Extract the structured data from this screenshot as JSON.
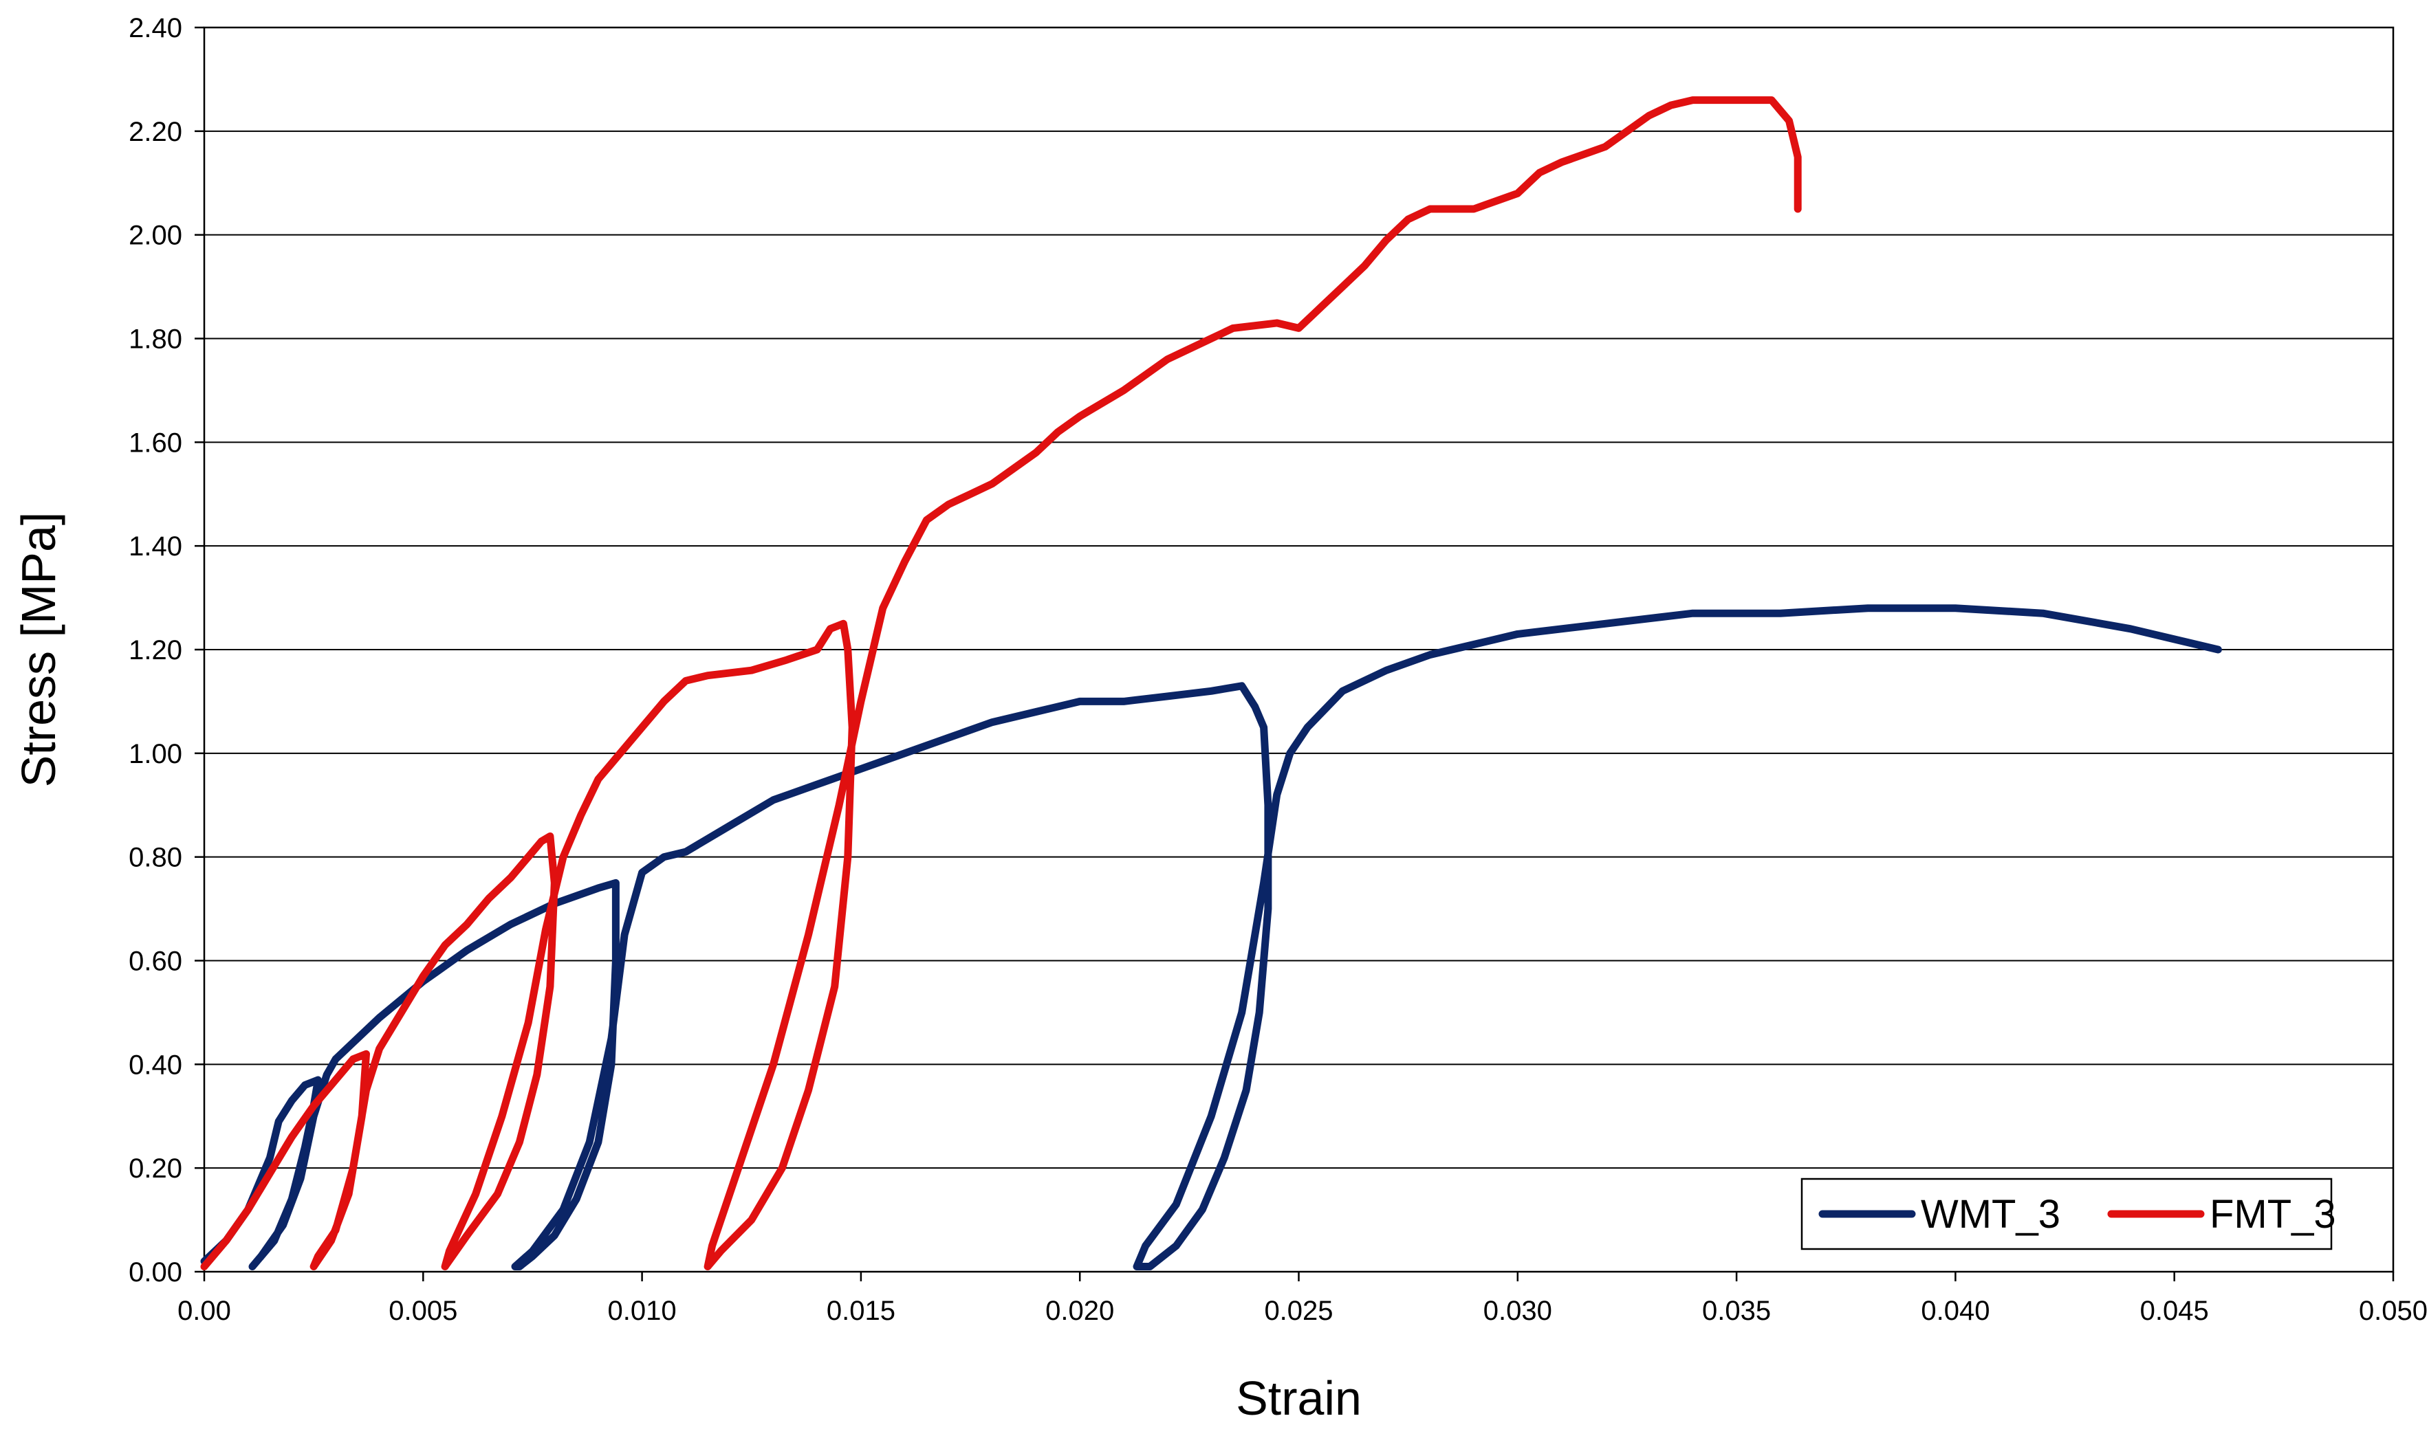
{
  "chart_data": {
    "type": "line",
    "xlabel": "Strain",
    "ylabel": "Stress [MPa]",
    "xlim": [
      0.0,
      0.05
    ],
    "ylim": [
      0.0,
      2.4
    ],
    "x_ticks": [
      "0.00",
      "0.005",
      "0.010",
      "0.015",
      "0.020",
      "0.025",
      "0.030",
      "0.035",
      "0.040",
      "0.045",
      "0.050"
    ],
    "y_ticks": [
      "0.00",
      "0.20",
      "0.40",
      "0.60",
      "0.80",
      "1.00",
      "1.20",
      "1.40",
      "1.60",
      "1.80",
      "2.00",
      "2.20",
      "2.40"
    ],
    "grid": "horizontal",
    "legend_position": "bottom-right",
    "series": [
      {
        "name": "WMT_3",
        "color": "#0b2566",
        "points": [
          [
            0.0,
            0.02
          ],
          [
            0.0005,
            0.06
          ],
          [
            0.001,
            0.12
          ],
          [
            0.0015,
            0.22
          ],
          [
            0.0017,
            0.29
          ],
          [
            0.002,
            0.33
          ],
          [
            0.0023,
            0.36
          ],
          [
            0.0026,
            0.37
          ],
          [
            0.0025,
            0.32
          ],
          [
            0.0023,
            0.24
          ],
          [
            0.002,
            0.14
          ],
          [
            0.0016,
            0.06
          ],
          [
            0.0012,
            0.02
          ],
          [
            0.0011,
            0.01
          ],
          [
            0.0013,
            0.03
          ],
          [
            0.0018,
            0.09
          ],
          [
            0.0022,
            0.18
          ],
          [
            0.0025,
            0.3
          ],
          [
            0.0028,
            0.38
          ],
          [
            0.003,
            0.41
          ],
          [
            0.0035,
            0.45
          ],
          [
            0.004,
            0.49
          ],
          [
            0.005,
            0.56
          ],
          [
            0.006,
            0.62
          ],
          [
            0.007,
            0.67
          ],
          [
            0.008,
            0.71
          ],
          [
            0.009,
            0.74
          ],
          [
            0.0094,
            0.75
          ],
          [
            0.0094,
            0.6
          ],
          [
            0.0093,
            0.4
          ],
          [
            0.009,
            0.25
          ],
          [
            0.0085,
            0.14
          ],
          [
            0.008,
            0.07
          ],
          [
            0.0075,
            0.03
          ],
          [
            0.0072,
            0.01
          ],
          [
            0.0071,
            0.01
          ],
          [
            0.0075,
            0.04
          ],
          [
            0.0082,
            0.12
          ],
          [
            0.0088,
            0.25
          ],
          [
            0.0093,
            0.45
          ],
          [
            0.0096,
            0.65
          ],
          [
            0.01,
            0.77
          ],
          [
            0.0105,
            0.8
          ],
          [
            0.011,
            0.81
          ],
          [
            0.012,
            0.86
          ],
          [
            0.013,
            0.91
          ],
          [
            0.014,
            0.94
          ],
          [
            0.015,
            0.97
          ],
          [
            0.016,
            1.0
          ],
          [
            0.017,
            1.03
          ],
          [
            0.018,
            1.06
          ],
          [
            0.019,
            1.08
          ],
          [
            0.02,
            1.1
          ],
          [
            0.021,
            1.1
          ],
          [
            0.022,
            1.11
          ],
          [
            0.023,
            1.12
          ],
          [
            0.0237,
            1.13
          ],
          [
            0.024,
            1.09
          ],
          [
            0.0242,
            1.05
          ],
          [
            0.0243,
            0.9
          ],
          [
            0.0243,
            0.7
          ],
          [
            0.0241,
            0.5
          ],
          [
            0.0238,
            0.35
          ],
          [
            0.0233,
            0.22
          ],
          [
            0.0228,
            0.12
          ],
          [
            0.0222,
            0.05
          ],
          [
            0.0216,
            0.01
          ],
          [
            0.0213,
            0.01
          ],
          [
            0.0215,
            0.05
          ],
          [
            0.0222,
            0.13
          ],
          [
            0.023,
            0.3
          ],
          [
            0.0237,
            0.5
          ],
          [
            0.0242,
            0.75
          ],
          [
            0.0245,
            0.92
          ],
          [
            0.0248,
            1.0
          ],
          [
            0.0252,
            1.05
          ],
          [
            0.026,
            1.12
          ],
          [
            0.027,
            1.16
          ],
          [
            0.028,
            1.19
          ],
          [
            0.029,
            1.21
          ],
          [
            0.03,
            1.23
          ],
          [
            0.032,
            1.25
          ],
          [
            0.034,
            1.27
          ],
          [
            0.036,
            1.27
          ],
          [
            0.038,
            1.28
          ],
          [
            0.04,
            1.28
          ],
          [
            0.042,
            1.27
          ],
          [
            0.044,
            1.24
          ],
          [
            0.046,
            1.2
          ]
        ]
      },
      {
        "name": "FMT_3",
        "color": "#e01010",
        "points": [
          [
            0.0,
            0.01
          ],
          [
            0.0005,
            0.06
          ],
          [
            0.001,
            0.12
          ],
          [
            0.0015,
            0.19
          ],
          [
            0.002,
            0.26
          ],
          [
            0.0025,
            0.32
          ],
          [
            0.003,
            0.37
          ],
          [
            0.0034,
            0.41
          ],
          [
            0.0037,
            0.42
          ],
          [
            0.0036,
            0.3
          ],
          [
            0.0033,
            0.15
          ],
          [
            0.0029,
            0.06
          ],
          [
            0.0025,
            0.01
          ],
          [
            0.0026,
            0.03
          ],
          [
            0.003,
            0.08
          ],
          [
            0.0034,
            0.2
          ],
          [
            0.0037,
            0.35
          ],
          [
            0.004,
            0.43
          ],
          [
            0.0045,
            0.5
          ],
          [
            0.005,
            0.57
          ],
          [
            0.0055,
            0.63
          ],
          [
            0.006,
            0.67
          ],
          [
            0.0065,
            0.72
          ],
          [
            0.007,
            0.76
          ],
          [
            0.0074,
            0.8
          ],
          [
            0.0077,
            0.83
          ],
          [
            0.0079,
            0.84
          ],
          [
            0.008,
            0.75
          ],
          [
            0.0079,
            0.55
          ],
          [
            0.0076,
            0.38
          ],
          [
            0.0072,
            0.25
          ],
          [
            0.0067,
            0.15
          ],
          [
            0.006,
            0.07
          ],
          [
            0.0055,
            0.01
          ],
          [
            0.0056,
            0.04
          ],
          [
            0.0062,
            0.15
          ],
          [
            0.0068,
            0.3
          ],
          [
            0.0074,
            0.48
          ],
          [
            0.0078,
            0.66
          ],
          [
            0.0082,
            0.8
          ],
          [
            0.0086,
            0.88
          ],
          [
            0.009,
            0.95
          ],
          [
            0.0095,
            1.0
          ],
          [
            0.01,
            1.05
          ],
          [
            0.0105,
            1.1
          ],
          [
            0.011,
            1.14
          ],
          [
            0.0115,
            1.15
          ],
          [
            0.0125,
            1.16
          ],
          [
            0.0133,
            1.18
          ],
          [
            0.014,
            1.2
          ],
          [
            0.0143,
            1.24
          ],
          [
            0.0146,
            1.25
          ],
          [
            0.0147,
            1.2
          ],
          [
            0.0148,
            1.05
          ],
          [
            0.0147,
            0.8
          ],
          [
            0.0144,
            0.55
          ],
          [
            0.0138,
            0.35
          ],
          [
            0.0132,
            0.2
          ],
          [
            0.0125,
            0.1
          ],
          [
            0.0118,
            0.04
          ],
          [
            0.0115,
            0.01
          ],
          [
            0.0116,
            0.05
          ],
          [
            0.0122,
            0.2
          ],
          [
            0.013,
            0.4
          ],
          [
            0.0138,
            0.65
          ],
          [
            0.0145,
            0.9
          ],
          [
            0.015,
            1.1
          ],
          [
            0.0155,
            1.28
          ],
          [
            0.016,
            1.37
          ],
          [
            0.0165,
            1.45
          ],
          [
            0.017,
            1.48
          ],
          [
            0.0175,
            1.5
          ],
          [
            0.018,
            1.52
          ],
          [
            0.0185,
            1.55
          ],
          [
            0.019,
            1.58
          ],
          [
            0.0195,
            1.62
          ],
          [
            0.02,
            1.65
          ],
          [
            0.021,
            1.7
          ],
          [
            0.022,
            1.76
          ],
          [
            0.023,
            1.8
          ],
          [
            0.0235,
            1.82
          ],
          [
            0.0245,
            1.83
          ],
          [
            0.025,
            1.82
          ],
          [
            0.0255,
            1.86
          ],
          [
            0.026,
            1.9
          ],
          [
            0.0265,
            1.94
          ],
          [
            0.027,
            1.99
          ],
          [
            0.0275,
            2.03
          ],
          [
            0.028,
            2.05
          ],
          [
            0.029,
            2.05
          ],
          [
            0.03,
            2.08
          ],
          [
            0.0305,
            2.12
          ],
          [
            0.031,
            2.14
          ],
          [
            0.032,
            2.17
          ],
          [
            0.0325,
            2.2
          ],
          [
            0.033,
            2.23
          ],
          [
            0.0335,
            2.25
          ],
          [
            0.034,
            2.26
          ],
          [
            0.035,
            2.26
          ],
          [
            0.0358,
            2.26
          ],
          [
            0.0362,
            2.22
          ],
          [
            0.0364,
            2.15
          ],
          [
            0.0364,
            2.05
          ]
        ]
      }
    ]
  }
}
